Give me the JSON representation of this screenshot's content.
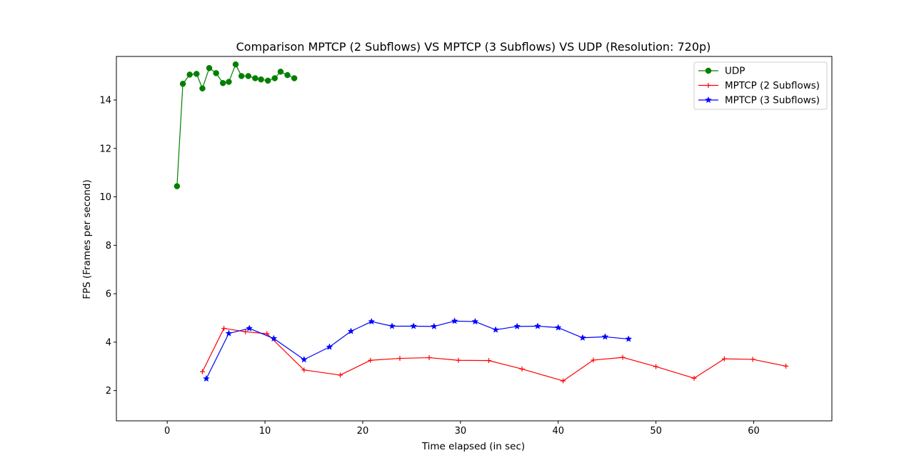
{
  "chart_data": {
    "type": "line",
    "title": "Comparison MPTCP (2 Subflows) VS MPTCP (3 Subflows) VS UDP (Resolution: 720p)",
    "xlabel": "Time elapsed (in sec)",
    "ylabel": "FPS (Frames per second)",
    "xlim": [
      -5.2,
      68.0
    ],
    "ylim": [
      0.75,
      15.8
    ],
    "xticks": [
      0,
      10,
      20,
      30,
      40,
      50,
      60
    ],
    "yticks": [
      2,
      4,
      6,
      8,
      10,
      12,
      14
    ],
    "grid": false,
    "legend_position": "top-right",
    "series": [
      {
        "name": "UDP",
        "color": "#008000",
        "marker": "circle",
        "points": [
          [
            1.0,
            10.44
          ],
          [
            1.6,
            14.67
          ],
          [
            2.3,
            15.05
          ],
          [
            3.0,
            15.08
          ],
          [
            3.6,
            14.48
          ],
          [
            4.3,
            15.32
          ],
          [
            5.0,
            15.11
          ],
          [
            5.7,
            14.7
          ],
          [
            6.3,
            14.75
          ],
          [
            7.0,
            15.47
          ],
          [
            7.6,
            14.99
          ],
          [
            8.3,
            14.99
          ],
          [
            9.0,
            14.9
          ],
          [
            9.6,
            14.85
          ],
          [
            10.3,
            14.8
          ],
          [
            11.0,
            14.9
          ],
          [
            11.6,
            15.17
          ],
          [
            12.3,
            15.03
          ],
          [
            13.0,
            14.9
          ]
        ]
      },
      {
        "name": "MPTCP (2 Subflows)",
        "color": "#ff0000",
        "marker": "plus",
        "points": [
          [
            3.6,
            2.78
          ],
          [
            5.8,
            4.57
          ],
          [
            8.0,
            4.43
          ],
          [
            10.2,
            4.35
          ],
          [
            14.0,
            2.85
          ],
          [
            17.7,
            2.64
          ],
          [
            20.8,
            3.25
          ],
          [
            23.8,
            3.33
          ],
          [
            26.8,
            3.36
          ],
          [
            29.8,
            3.25
          ],
          [
            32.9,
            3.24
          ],
          [
            36.3,
            2.89
          ],
          [
            40.5,
            2.4
          ],
          [
            43.6,
            3.26
          ],
          [
            46.6,
            3.37
          ],
          [
            50.0,
            2.99
          ],
          [
            53.9,
            2.51
          ],
          [
            57.0,
            3.31
          ],
          [
            59.9,
            3.29
          ],
          [
            63.3,
            3.01
          ]
        ]
      },
      {
        "name": "MPTCP (3 Subflows)",
        "color": "#0000ff",
        "marker": "star",
        "points": [
          [
            4.0,
            2.49
          ],
          [
            6.3,
            4.36
          ],
          [
            8.4,
            4.57
          ],
          [
            10.9,
            4.15
          ],
          [
            14.0,
            3.28
          ],
          [
            16.6,
            3.8
          ],
          [
            18.8,
            4.45
          ],
          [
            20.9,
            4.85
          ],
          [
            23.0,
            4.66
          ],
          [
            25.2,
            4.66
          ],
          [
            27.3,
            4.65
          ],
          [
            29.4,
            4.87
          ],
          [
            31.5,
            4.85
          ],
          [
            33.6,
            4.51
          ],
          [
            35.8,
            4.65
          ],
          [
            37.9,
            4.66
          ],
          [
            40.0,
            4.6
          ],
          [
            42.5,
            4.18
          ],
          [
            44.8,
            4.22
          ],
          [
            47.2,
            4.13
          ]
        ]
      }
    ]
  }
}
